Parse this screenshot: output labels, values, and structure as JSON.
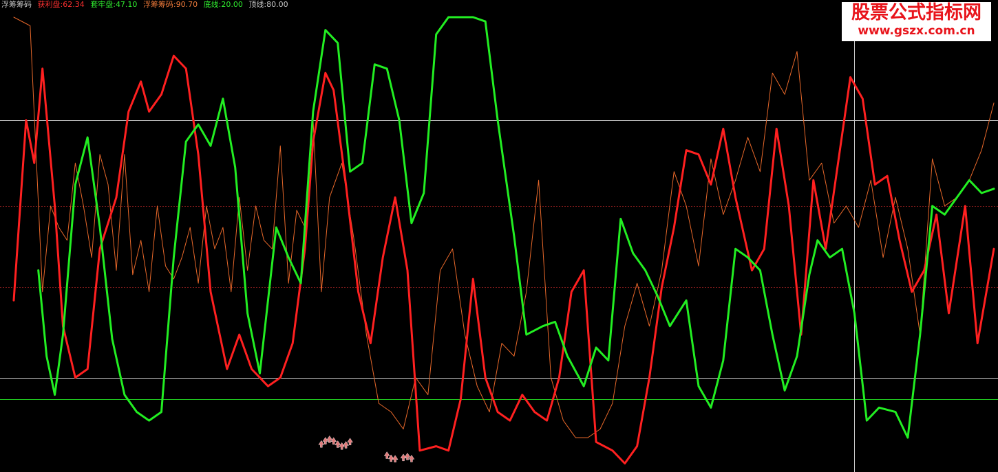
{
  "legend": {
    "indicator": "浮筹筹码",
    "profit_label": "获利盘:",
    "profit_value": "62.34",
    "trapped_label": "套牢盘:",
    "trapped_value": "47.10",
    "float_label": "浮筹筹码:",
    "float_value": "90.70",
    "bottom_label": "底线:",
    "bottom_value": "20.00",
    "top_label": "顶线:",
    "top_value": "80.00"
  },
  "watermark": {
    "line1": "股票公式指标网",
    "line2": "www.gszx.com.cn"
  },
  "colors": {
    "background": "#000000",
    "profit": "#ff2020",
    "trapped": "#22ee22",
    "float": "#e8682a",
    "top_line": "#c8c8c8",
    "bottom_line": "#c8c8c8",
    "base_line": "#20c820",
    "dotted": "#7a1a1a",
    "arrows": "#e07a7a",
    "crosshair": "#c8c8c8"
  },
  "chart_data": {
    "type": "line",
    "ylim": [
      -2,
      108
    ],
    "x_count": 240,
    "reference_lines": [
      {
        "name": "顶线",
        "value": 80,
        "style": "solid"
      },
      {
        "name": "底线",
        "value": 20,
        "style": "solid"
      },
      {
        "value": 15,
        "style": "solid-green"
      },
      {
        "value": 60,
        "style": "dotted"
      },
      {
        "value": 41,
        "style": "dotted"
      }
    ],
    "crosshair_x": 205,
    "series": [
      {
        "name": "获利盘",
        "x": [
          0,
          3,
          5,
          7,
          10,
          12,
          15,
          18,
          21,
          25,
          28,
          31,
          33,
          36,
          39,
          42,
          45,
          48,
          52,
          55,
          58,
          62,
          65,
          68,
          71,
          73,
          76,
          78,
          81,
          84,
          87,
          90,
          93,
          96,
          99,
          103,
          106,
          109,
          112,
          115,
          118,
          121,
          124,
          127,
          130,
          133,
          136,
          139,
          142,
          146,
          149,
          152,
          155,
          158,
          161,
          164,
          167,
          170,
          173,
          176,
          180,
          183,
          186,
          189,
          192,
          195,
          198,
          201,
          204,
          207,
          210,
          213,
          216,
          219,
          222,
          225,
          228,
          232,
          235,
          239
        ],
        "values": [
          38,
          80,
          70,
          92,
          60,
          32,
          20,
          22,
          50,
          62,
          82,
          89,
          82,
          86,
          95,
          92,
          72,
          40,
          22,
          30,
          22,
          18,
          20,
          28,
          50,
          75,
          91,
          87,
          65,
          40,
          28,
          48,
          62,
          45,
          3,
          4,
          3,
          15,
          43,
          20,
          12,
          10,
          16,
          12,
          10,
          20,
          40,
          45,
          5,
          3,
          0,
          4,
          20,
          41,
          55,
          73,
          72,
          65,
          78,
          62,
          45,
          50,
          78,
          60,
          30,
          66,
          50,
          70,
          90,
          85,
          65,
          67,
          52,
          40,
          45,
          58,
          35,
          60,
          28,
          50
        ]
      },
      {
        "name": "套牢盘",
        "x": [
          6,
          8,
          10,
          12,
          15,
          18,
          21,
          24,
          27,
          30,
          33,
          36,
          39,
          42,
          45,
          48,
          51,
          54,
          57,
          60,
          64,
          67,
          70,
          73,
          76,
          79,
          82,
          85,
          88,
          91,
          94,
          97,
          100,
          103,
          106,
          109,
          112,
          115,
          118,
          122,
          125,
          129,
          132,
          135,
          139,
          142,
          145,
          148,
          151,
          154,
          157,
          160,
          164,
          167,
          170,
          173,
          176,
          179,
          182,
          185,
          188,
          191,
          194,
          196,
          199,
          202,
          205,
          208,
          211,
          215,
          218,
          221,
          224,
          227,
          230,
          233,
          236,
          239
        ],
        "values": [
          45,
          25,
          16,
          30,
          65,
          76,
          55,
          29,
          16,
          12,
          10,
          12,
          48,
          75,
          79,
          74,
          85,
          69,
          35,
          21,
          55,
          48,
          42,
          82,
          101,
          98,
          68,
          70,
          93,
          92,
          80,
          56,
          63,
          100,
          104,
          104,
          104,
          103,
          80,
          53,
          30,
          32,
          33,
          25,
          18,
          27,
          24,
          57,
          49,
          45,
          39,
          32,
          38,
          18,
          13,
          24,
          50,
          48,
          45,
          30,
          17,
          25,
          44,
          52,
          48,
          50,
          35,
          10,
          13,
          12,
          6,
          30,
          60,
          58,
          62,
          66,
          63,
          64
        ]
      },
      {
        "name": "浮筹筹码",
        "x": [
          0,
          4,
          7,
          9,
          11,
          13,
          15,
          17,
          19,
          21,
          23,
          25,
          27,
          29,
          31,
          33,
          35,
          37,
          39,
          41,
          43,
          45,
          47,
          49,
          51,
          53,
          55,
          57,
          59,
          61,
          63,
          65,
          67,
          69,
          71,
          73,
          75,
          77,
          80,
          83,
          86,
          89,
          92,
          95,
          98,
          101,
          104,
          107,
          110,
          113,
          116,
          119,
          122,
          125,
          128,
          131,
          134,
          137,
          140,
          143,
          146,
          149,
          152,
          155,
          158,
          161,
          164,
          167,
          170,
          173,
          176,
          179,
          182,
          185,
          188,
          191,
          194,
          197,
          200,
          203,
          206,
          209,
          212,
          215,
          218,
          221,
          224,
          227,
          230,
          233,
          236,
          239
        ],
        "values": [
          104,
          102,
          40,
          60,
          55,
          52,
          70,
          60,
          48,
          72,
          65,
          45,
          72,
          44,
          52,
          40,
          60,
          46,
          43,
          48,
          55,
          42,
          60,
          50,
          55,
          40,
          62,
          45,
          60,
          52,
          50,
          74,
          42,
          59,
          55,
          80,
          40,
          62,
          70,
          52,
          30,
          14,
          12,
          8,
          20,
          16,
          45,
          50,
          30,
          18,
          12,
          28,
          25,
          40,
          66,
          20,
          10,
          6,
          6,
          8,
          14,
          32,
          42,
          32,
          45,
          68,
          60,
          46,
          71,
          58,
          66,
          76,
          68,
          91,
          86,
          96,
          66,
          70,
          56,
          60,
          55,
          66,
          48,
          62,
          50,
          30,
          71,
          60,
          62,
          66,
          73,
          84
        ]
      }
    ],
    "arrow_marks": {
      "start_x": [
        75,
        91,
        95,
        109
      ],
      "end_x": [
        82,
        93,
        97,
        128
      ],
      "value": [
        5,
        2,
        1,
        -5
      ]
    }
  }
}
